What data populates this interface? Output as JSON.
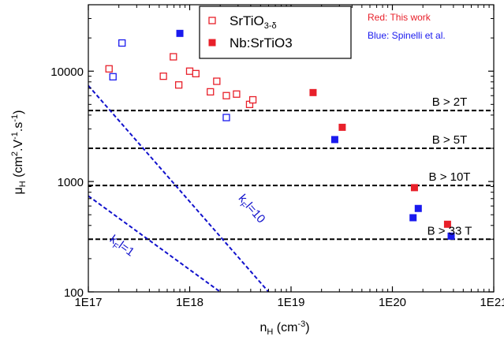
{
  "chart_data": {
    "type": "scatter",
    "xscale": "log",
    "yscale": "log",
    "xlim": [
      1e+17,
      1e+21
    ],
    "ylim": [
      100,
      40000
    ],
    "x_ticks": [
      {
        "value": 1e+17,
        "label": "1E17"
      },
      {
        "value": 1e+18,
        "label": "1E18"
      },
      {
        "value": 1e+19,
        "label": "1E19"
      },
      {
        "value": 1e+20,
        "label": "1E20"
      },
      {
        "value": 1e+21,
        "label": "1E21"
      }
    ],
    "y_ticks": [
      {
        "value": 100,
        "label": "100"
      },
      {
        "value": 1000,
        "label": "1000"
      },
      {
        "value": 10000,
        "label": "10000"
      }
    ],
    "xlabel": {
      "main": "n",
      "sub": "H",
      "after": " (cm",
      "sup": "-3",
      "close": ")"
    },
    "ylabel": {
      "main": "μ",
      "sub": "H",
      "after": " (cm",
      "sup1": "2",
      "mid": ".V",
      "sup2": "-1",
      "mid2": ".s",
      "sup3": "-1",
      "close": ")"
    },
    "legend": {
      "position": "top-center",
      "entries": [
        {
          "label_main": "SrTiO",
          "label_sub": "3-δ",
          "marker": "open-square",
          "color": "#e8202a"
        },
        {
          "label_main": "Nb:SrTiO3",
          "label_sub": "",
          "marker": "filled-square",
          "color": "#e8202a"
        }
      ]
    },
    "notes": [
      {
        "text": "Red: This work",
        "color": "#e8202a"
      },
      {
        "text": "Blue: Spinelli et al.",
        "color": "#1a1aee"
      }
    ],
    "series": [
      {
        "name": "SrTiO3-δ (this work)",
        "marker": "open-square",
        "color": "#e8202a",
        "points": [
          [
            1.6e+17,
            10500
          ],
          [
            5.5e+17,
            9000
          ],
          [
            6.9e+17,
            13500
          ],
          [
            7.8e+17,
            7500
          ],
          [
            1e+18,
            10000
          ],
          [
            1.15e+18,
            9500
          ],
          [
            1.6e+18,
            6500
          ],
          [
            1.85e+18,
            8100
          ],
          [
            2.3e+18,
            6000
          ],
          [
            2.9e+18,
            6200
          ],
          [
            3.9e+18,
            5000
          ],
          [
            4.2e+18,
            5500
          ]
        ]
      },
      {
        "name": "SrTiO3-δ (Spinelli et al.)",
        "marker": "open-square",
        "color": "#1a1aee",
        "points": [
          [
            1.75e+17,
            8900
          ],
          [
            2.15e+17,
            18000
          ],
          [
            2.3e+18,
            3800
          ]
        ]
      },
      {
        "name": "Nb:SrTiO3 (this work)",
        "marker": "filled-square",
        "color": "#e8202a",
        "points": [
          [
            1.65e+19,
            6400
          ],
          [
            3.2e+19,
            3100
          ],
          [
            1.65e+20,
            880
          ],
          [
            3.5e+20,
            410
          ]
        ]
      },
      {
        "name": "Nb:SrTiO3 (Spinelli et al.)",
        "marker": "filled-square",
        "color": "#1a1aee",
        "points": [
          [
            8e+17,
            22000
          ],
          [
            2.7e+19,
            2400
          ],
          [
            1.6e+20,
            470
          ],
          [
            1.8e+20,
            570
          ],
          [
            3.8e+20,
            320
          ]
        ]
      }
    ],
    "thresholds": [
      {
        "y": 4400,
        "label": "B > 2T"
      },
      {
        "y": 2000,
        "label": "B > 5T"
      },
      {
        "y": 920,
        "label": "B > 10T"
      },
      {
        "y": 300,
        "label": "B > 33 T"
      }
    ],
    "kfl_lines": [
      {
        "label": "kₚl=10",
        "label_main": "k",
        "label_sub": "F",
        "label_rest": "l=10",
        "x1": 1e+17,
        "y1": 7400,
        "x2": 6e+18,
        "y2": 100
      },
      {
        "label_main": "k",
        "label_sub": "F",
        "label_rest": "l=1",
        "x1": 1e+17,
        "y1": 740,
        "x2": 2e+18,
        "y2": 100
      }
    ]
  }
}
